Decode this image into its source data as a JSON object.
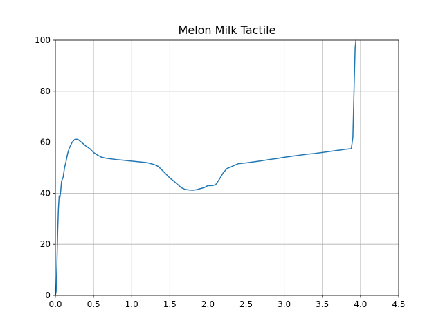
{
  "chart_data": {
    "type": "line",
    "title": "Melon Milk Tactile",
    "xlabel": "",
    "ylabel": "",
    "xlim": [
      0,
      4.5
    ],
    "ylim": [
      0,
      100
    ],
    "xticks": [
      0.0,
      0.5,
      1.0,
      1.5,
      2.0,
      2.5,
      3.0,
      3.5,
      4.0,
      4.5
    ],
    "xtick_labels": [
      "0.0",
      "0.5",
      "1.0",
      "1.5",
      "2.0",
      "2.5",
      "3.0",
      "3.5",
      "4.0",
      "4.5"
    ],
    "yticks": [
      0,
      20,
      40,
      60,
      80,
      100
    ],
    "ytick_labels": [
      "0",
      "20",
      "40",
      "60",
      "80",
      "100"
    ],
    "grid": true,
    "series": [
      {
        "color": "#1f77b4",
        "x": [
          0.0,
          0.01,
          0.02,
          0.03,
          0.04,
          0.05,
          0.06,
          0.07,
          0.08,
          0.09,
          0.1,
          0.12,
          0.14,
          0.16,
          0.18,
          0.2,
          0.22,
          0.25,
          0.28,
          0.3,
          0.32,
          0.35,
          0.38,
          0.4,
          0.45,
          0.5,
          0.55,
          0.6,
          0.65,
          0.7,
          0.8,
          0.9,
          1.0,
          1.1,
          1.2,
          1.3,
          1.35,
          1.4,
          1.45,
          1.5,
          1.55,
          1.6,
          1.65,
          1.7,
          1.75,
          1.8,
          1.85,
          1.9,
          1.95,
          2.0,
          2.05,
          2.1,
          2.15,
          2.2,
          2.25,
          2.3,
          2.35,
          2.4,
          2.5,
          2.6,
          2.7,
          2.8,
          2.9,
          3.0,
          3.1,
          3.2,
          3.3,
          3.4,
          3.5,
          3.6,
          3.7,
          3.8,
          3.88,
          3.9,
          3.91,
          3.92,
          3.93,
          3.94
        ],
        "y": [
          0.0,
          1.5,
          12.0,
          25.0,
          34.0,
          39.0,
          38.5,
          41.0,
          44.5,
          45.5,
          46.0,
          50.0,
          52.5,
          55.5,
          57.5,
          58.8,
          60.0,
          61.0,
          61.2,
          61.0,
          60.5,
          59.8,
          59.0,
          58.5,
          57.5,
          56.0,
          55.0,
          54.2,
          53.8,
          53.6,
          53.2,
          52.9,
          52.6,
          52.3,
          52.0,
          51.2,
          50.5,
          49.0,
          47.5,
          46.0,
          44.8,
          43.5,
          42.2,
          41.5,
          41.3,
          41.2,
          41.4,
          41.8,
          42.2,
          43.0,
          43.0,
          43.3,
          45.5,
          48.0,
          49.7,
          50.3,
          51.0,
          51.6,
          51.9,
          52.3,
          52.7,
          53.2,
          53.6,
          54.1,
          54.5,
          54.9,
          55.3,
          55.6,
          56.0,
          56.4,
          56.8,
          57.2,
          57.5,
          62.0,
          74.0,
          86.0,
          97.0,
          100.0
        ]
      }
    ]
  }
}
